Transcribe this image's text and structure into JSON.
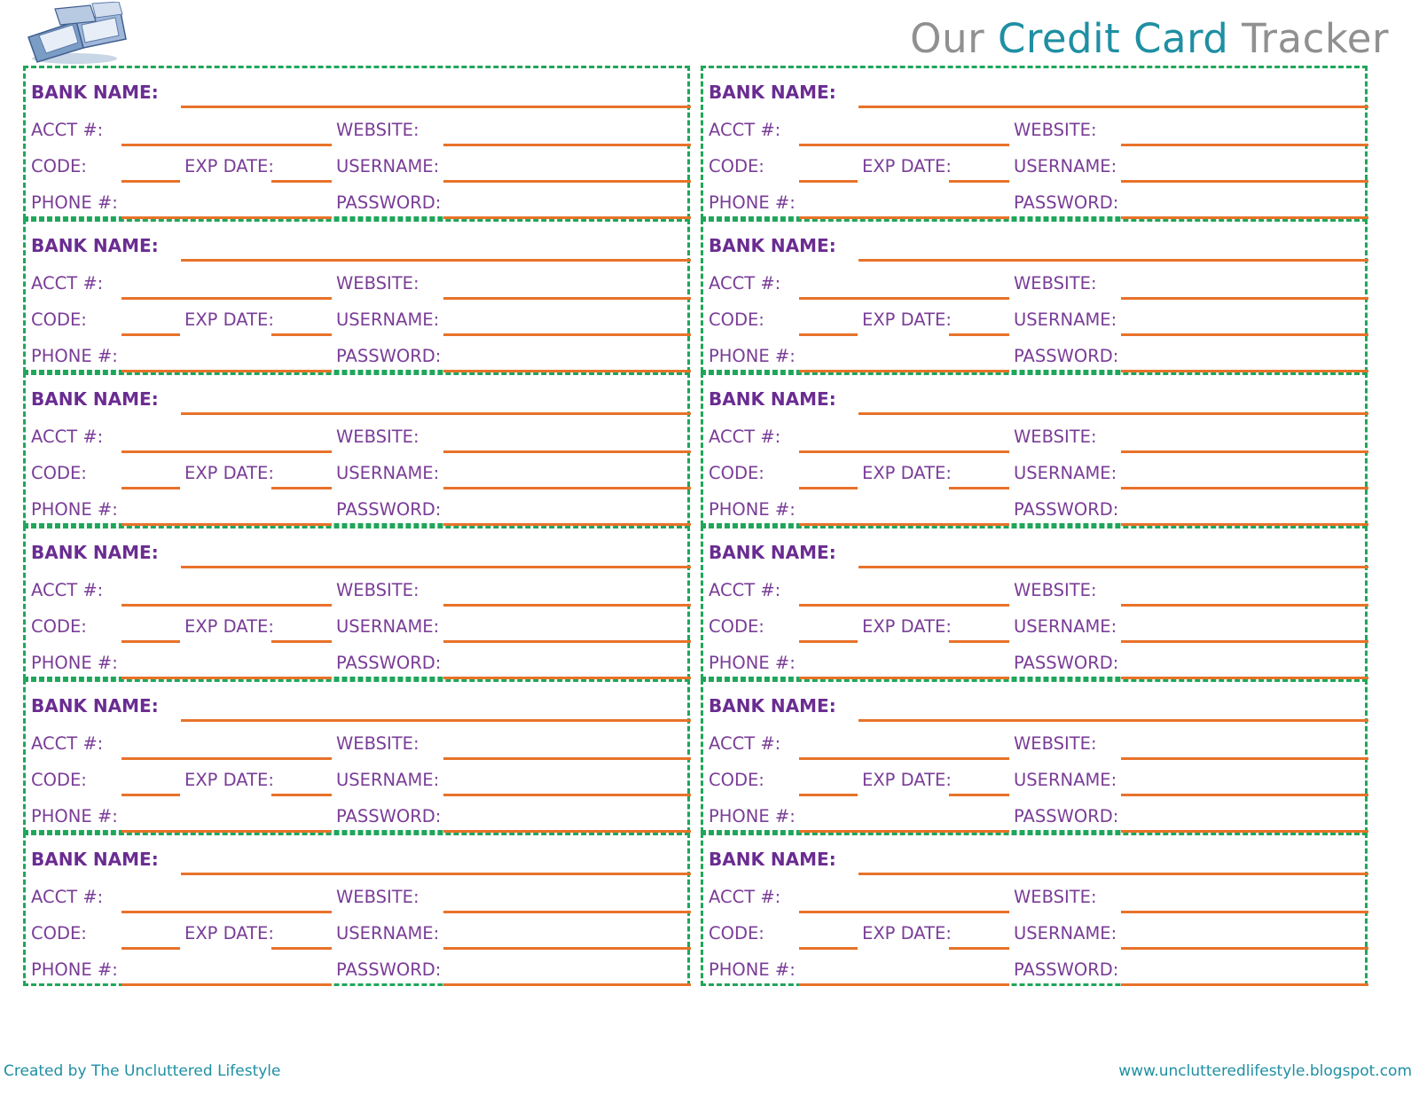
{
  "header": {
    "title_prefix": "Our",
    "title_accent": "Credit Card",
    "title_suffix": "Tracker"
  },
  "card_labels": {
    "bank": "BANK NAME:",
    "acct": "ACCT #:",
    "website": "WEBSITE:",
    "code": "CODE:",
    "exp": "EXP DATE:",
    "username": "USERNAME:",
    "phone": "PHONE #:",
    "password": "PASSWORD:"
  },
  "card_count": 12,
  "colors": {
    "border": "#1fa65a",
    "line": "#e8722a",
    "label": "#7a3d97",
    "accent": "#1f8fa3",
    "title_gray": "#909090"
  },
  "logo_icon": "open-book-icon",
  "footer": {
    "left": "Created by The Uncluttered Lifestyle",
    "right": "www.unclutteredlifestyle.blogspot.com"
  }
}
